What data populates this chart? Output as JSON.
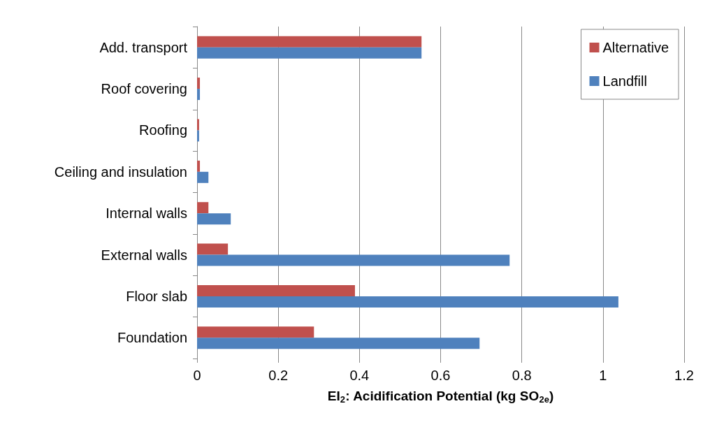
{
  "chart_data": {
    "type": "bar",
    "orientation": "horizontal",
    "categories": [
      "Add. transport",
      "Roof covering",
      "Roofing",
      "Ceiling and insulation",
      "Internal walls",
      "External walls",
      "Floor slab",
      "Foundation"
    ],
    "series": [
      {
        "name": "Alternative",
        "color": "#c0504d",
        "values": [
          0.553,
          0.007,
          0.005,
          0.007,
          0.028,
          0.076,
          0.389,
          0.288
        ]
      },
      {
        "name": "Landfill",
        "color": "#4f81bd",
        "values": [
          0.553,
          0.007,
          0.005,
          0.028,
          0.083,
          0.77,
          1.038,
          0.696
        ]
      }
    ],
    "xlabel": "EI$_{2}$: Acidification Potential (kg SO$_{2e}$)",
    "xlim": [
      0,
      1.2
    ],
    "xticks": [
      0,
      0.2,
      0.4,
      0.6,
      0.8,
      1,
      1.2
    ],
    "grid": "x",
    "legend": "top right"
  }
}
